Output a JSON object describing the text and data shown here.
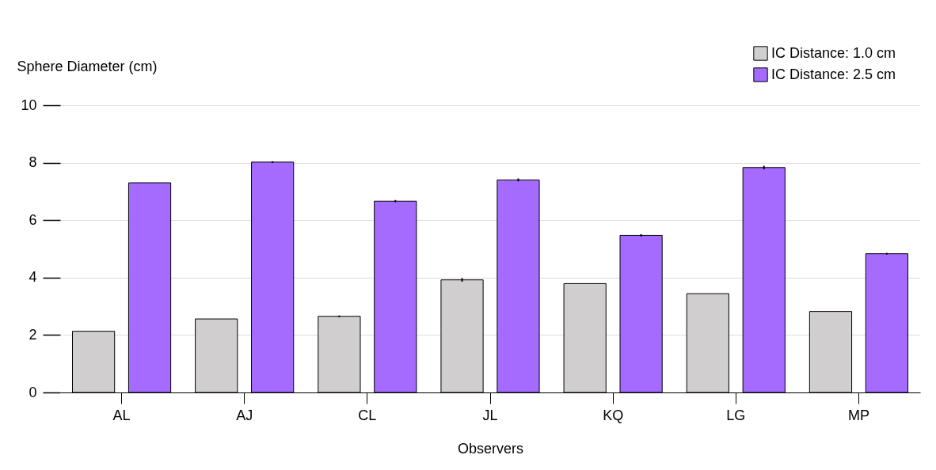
{
  "chart_data": {
    "type": "bar",
    "xlabel": "Observers",
    "ylabel": "Sphere Diameter (cm)",
    "categories": [
      "AL",
      "AJ",
      "CL",
      "JL",
      "KQ",
      "LG",
      "MP"
    ],
    "series": [
      {
        "name": "IC Distance: 1.0 cm",
        "color": "#d0cece",
        "values": [
          2.13,
          2.56,
          2.65,
          3.92,
          3.79,
          3.44,
          2.82
        ],
        "errors": [
          null,
          null,
          0.03,
          0.06,
          null,
          null,
          null
        ]
      },
      {
        "name": "IC Distance: 2.5 cm",
        "color": "#a56bff",
        "values": [
          7.3,
          8.02,
          6.66,
          7.4,
          5.47,
          7.83,
          4.83
        ],
        "errors": [
          null,
          0.03,
          0.04,
          0.05,
          0.04,
          0.06,
          0.03
        ]
      }
    ],
    "ylim": [
      0,
      10
    ],
    "yticks": [
      0,
      2,
      4,
      6,
      8,
      10
    ],
    "grid": "y",
    "legend": "top right"
  }
}
